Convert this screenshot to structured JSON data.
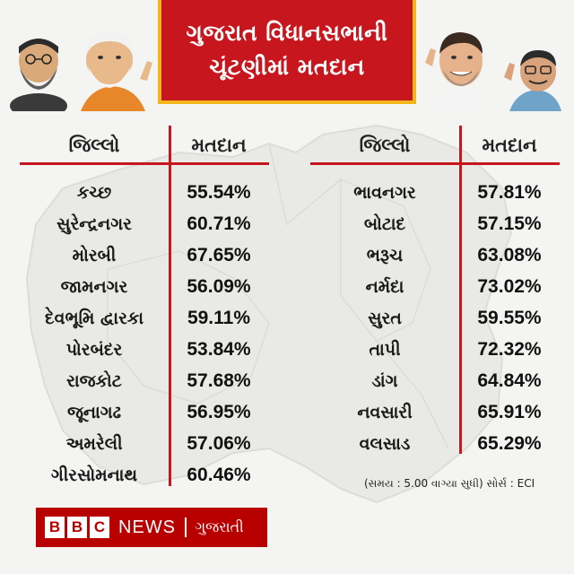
{
  "title": {
    "line1": "ગુજરાત વિધાનસભાની",
    "line2": "ચૂંટણીમાં મતદાન"
  },
  "left_table": {
    "header_district": "જિલ્લો",
    "header_turnout": "મતદાન",
    "rows": [
      {
        "district": "કચ્છ",
        "turnout": "55.54%"
      },
      {
        "district": "સુરેન્દ્રનગર",
        "turnout": "60.71%"
      },
      {
        "district": "મોરબી",
        "turnout": "67.65%"
      },
      {
        "district": "જામનગર",
        "turnout": "56.09%"
      },
      {
        "district": "દેવભૂમિ દ્વારકા",
        "turnout": "59.11%"
      },
      {
        "district": "પોરબંદર",
        "turnout": "53.84%"
      },
      {
        "district": "રાજકોટ",
        "turnout": "57.68%"
      },
      {
        "district": "જૂનાગઢ",
        "turnout": "56.95%"
      },
      {
        "district": "અમરેલી",
        "turnout": "57.06%"
      },
      {
        "district": "ગીરસોમનાથ",
        "turnout": "60.46%"
      }
    ]
  },
  "right_table": {
    "header_district": "જિલ્લો",
    "header_turnout": "મતદાન",
    "rows": [
      {
        "district": "ભાવનગર",
        "turnout": "57.81%"
      },
      {
        "district": "બોટાદ",
        "turnout": "57.15%"
      },
      {
        "district": "ભરૂચ",
        "turnout": "63.08%"
      },
      {
        "district": "નર્મદા",
        "turnout": "73.02%"
      },
      {
        "district": "સુરત",
        "turnout": "59.55%"
      },
      {
        "district": "તાપી",
        "turnout": "72.32%"
      },
      {
        "district": "ડાંગ",
        "turnout": "64.84%"
      },
      {
        "district": "નવસારી",
        "turnout": "65.91%"
      },
      {
        "district": "વલસાડ",
        "turnout": "65.29%"
      }
    ]
  },
  "source_note": "(સમય : 5.00 વાગ્યા સુધી) સોર્સ : ECI",
  "logo": {
    "b1": "B",
    "b2": "B",
    "b3": "C",
    "news": "NEWS",
    "language": "ગુજરાતી"
  },
  "colors": {
    "accent_red": "#c7161e",
    "title_border": "#f2b51c",
    "logo_red": "#b80000"
  }
}
